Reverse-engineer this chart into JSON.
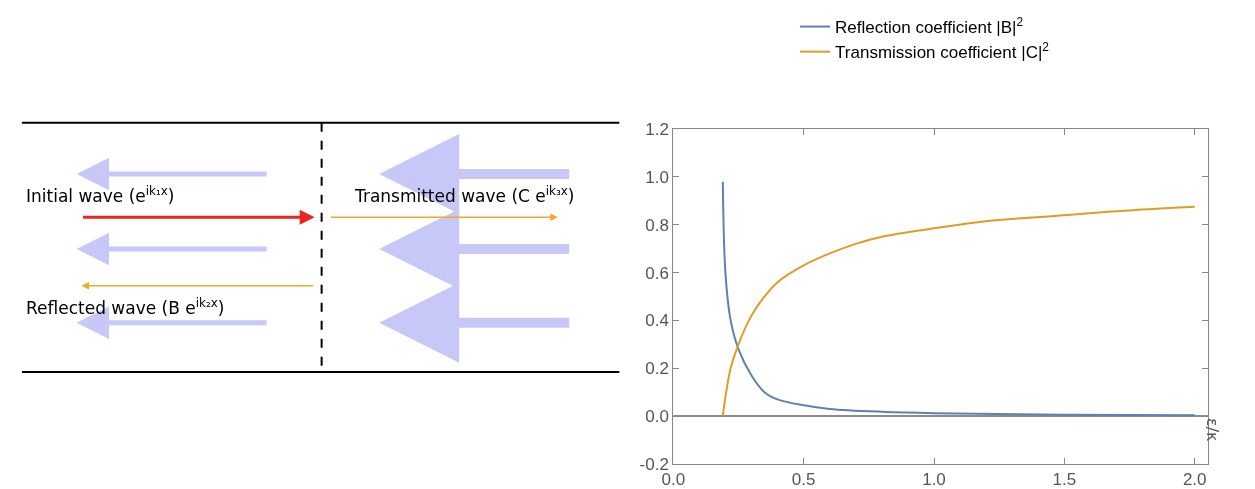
{
  "chart_data": [
    {
      "type": "other",
      "annotations": [
        "Initial wave (e$^{ik₁x}$)",
        "Transmitted wave (C e$^{ik₃x}$)",
        "Reflected wave (B e$^{ik₂x}$)"
      ]
    },
    {
      "type": "line",
      "annotations": [
        "ε/κ"
      ],
      "legend": "top",
      "grid": false,
      "marker": "none",
      "line_style": "solid",
      "xlim": [
        0,
        2.05
      ],
      "ylim": [
        -0.2,
        1.2
      ],
      "xticks": [
        {
          "value": 0,
          "label": "0.0"
        },
        {
          "value": 0.5,
          "label": "0.5"
        },
        {
          "value": 1,
          "label": "1.0"
        },
        {
          "value": 1.5,
          "label": "1.5"
        },
        {
          "value": 2,
          "label": "2.0"
        }
      ],
      "yticks": [
        {
          "value": -0.2,
          "label": "-0.2"
        },
        {
          "value": 0,
          "label": "0.0"
        },
        {
          "value": 0.2,
          "label": "0.2"
        },
        {
          "value": 0.4,
          "label": "0.4"
        },
        {
          "value": 0.6,
          "label": "0.6"
        },
        {
          "value": 0.8,
          "label": "0.8"
        },
        {
          "value": 1,
          "label": "1.0"
        },
        {
          "value": 1.2,
          "label": "1.2"
        }
      ],
      "ref_lines": [
        {
          "axis": "y",
          "value": 0,
          "color": "#666666"
        }
      ],
      "series": [
        {
          "name": "Reflection coefficient |B|$^{2}$",
          "color": "#5e81b5",
          "x": [
            0.19,
            0.2,
            0.22,
            0.25,
            0.3,
            0.35,
            0.4,
            0.5,
            0.6,
            0.8,
            1.0,
            1.5,
            2.0
          ],
          "values": [
            0.98,
            0.6,
            0.4,
            0.28,
            0.17,
            0.1,
            0.07,
            0.045,
            0.03,
            0.018,
            0.012,
            0.006,
            0.004
          ]
        },
        {
          "name": "Transmission coefficient |C|$^{2}$",
          "color": "#e19c24",
          "x": [
            0.19,
            0.2,
            0.22,
            0.25,
            0.3,
            0.35,
            0.4,
            0.5,
            0.6,
            0.7,
            0.8,
            1.0,
            1.2,
            1.5,
            1.75,
            2.0
          ],
          "values": [
            0,
            0.08,
            0.2,
            0.3,
            0.42,
            0.5,
            0.56,
            0.63,
            0.68,
            0.72,
            0.75,
            0.785,
            0.815,
            0.84,
            0.86,
            0.875
          ]
        }
      ]
    }
  ]
}
